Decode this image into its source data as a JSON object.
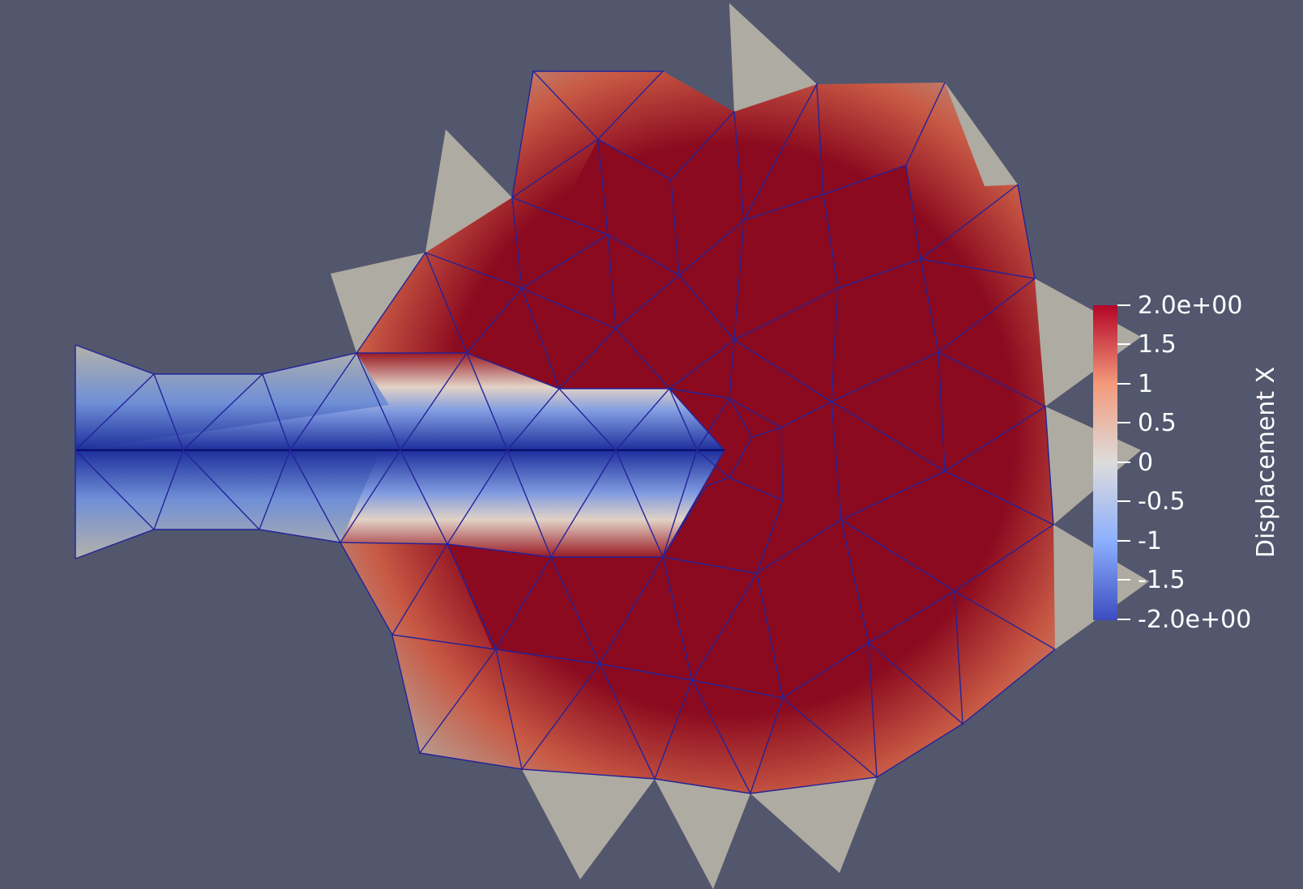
{
  "scene": {
    "background_color": "#52576e",
    "mesh_edge_color": "#1e1e8c",
    "outer_cell_color": "#aeaba2",
    "field_colors": {
      "max": "#8b0a1f",
      "mid": "#dcd9d2",
      "min": "#3b4cc0"
    }
  },
  "colorbar": {
    "title": "Displacement X",
    "ticks": [
      "2.0e+00",
      "1.5",
      "1",
      "0.5",
      "0",
      "-0.5",
      "-1",
      "-1.5",
      "-2.0e+00"
    ],
    "range": [
      -2.0,
      2.0
    ]
  }
}
